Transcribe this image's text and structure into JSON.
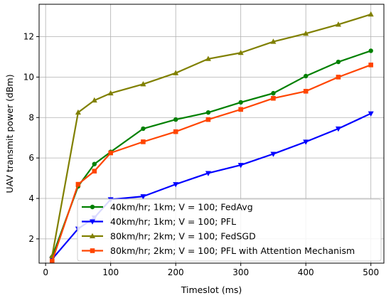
{
  "chart_data": {
    "type": "line",
    "title": "",
    "xlabel": "Timeslot (ms)",
    "ylabel": "UAV transmit power (dBm)",
    "xlim": [
      -10,
      520
    ],
    "ylim": [
      0.8,
      13.6
    ],
    "xticks": [
      0,
      100,
      200,
      300,
      400,
      500
    ],
    "yticks": [
      2,
      4,
      6,
      8,
      10,
      12
    ],
    "grid": true,
    "legend_position": "lower-right",
    "series": [
      {
        "name": "40km/hr; 1km; V = 100; FedAvg",
        "color": "#008000",
        "marker": "circle",
        "x": [
          10,
          50,
          75,
          100,
          150,
          200,
          250,
          300,
          350,
          400,
          450,
          500
        ],
        "y": [
          1.1,
          4.6,
          5.7,
          6.3,
          7.45,
          7.9,
          8.25,
          8.75,
          9.2,
          10.05,
          10.75,
          11.3
        ]
      },
      {
        "name": "40km/hr; 1km; V = 100; PFL",
        "color": "#0000ff",
        "marker": "triangle-down",
        "x": [
          10,
          50,
          75,
          100,
          150,
          200,
          250,
          300,
          350,
          400,
          450,
          500
        ],
        "y": [
          1.0,
          2.5,
          3.05,
          3.95,
          4.1,
          4.7,
          5.25,
          5.65,
          6.2,
          6.8,
          7.45,
          8.2
        ]
      },
      {
        "name": "80km/hr; 2km; V = 100; FedSGD",
        "color": "#808000",
        "marker": "triangle-up",
        "x": [
          10,
          50,
          75,
          100,
          150,
          200,
          250,
          300,
          350,
          400,
          450,
          500
        ],
        "y": [
          1.15,
          8.25,
          8.85,
          9.2,
          9.65,
          10.2,
          10.9,
          11.2,
          11.75,
          12.15,
          12.6,
          13.1
        ]
      },
      {
        "name": "80km/hr; 2km; V = 100; PFL with Attention Mechanism",
        "color": "#ff4500",
        "marker": "square",
        "x": [
          10,
          50,
          75,
          100,
          150,
          200,
          250,
          300,
          350,
          400,
          450,
          500
        ],
        "y": [
          0.9,
          4.7,
          5.35,
          6.25,
          6.8,
          7.3,
          7.9,
          8.4,
          8.95,
          9.3,
          10.0,
          10.6
        ]
      }
    ]
  }
}
